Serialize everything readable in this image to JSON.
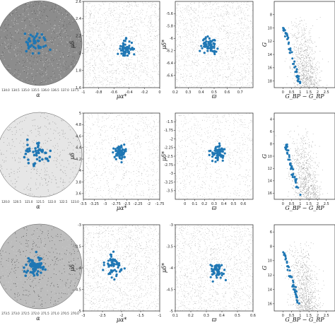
{
  "chart_data": {
    "type": "scatter",
    "layout": "3 rows x 4 columns grid",
    "colors": {
      "members": "#1f77b4",
      "field": "#8a8a8a",
      "sky_dark": "#6f6f6f"
    },
    "rows": [
      {
        "sky": {
          "xlabel": "α",
          "xticks": [
            "134.0",
            "134.5",
            "135.0",
            "135.5",
            "136.0",
            "136.5",
            "137.0",
            "137.5"
          ]
        },
        "pm": {
          "xlabel": "μα*",
          "ylabel": "μδ",
          "xlim": [
            -1.0,
            0.0
          ],
          "ylim": [
            1.6,
            2.6
          ],
          "xticks": [
            -1.0,
            -0.8,
            -0.6,
            -0.4,
            -0.2,
            0.0
          ],
          "yticks": [
            1.6,
            1.8,
            2.0,
            2.2,
            2.4,
            2.6
          ],
          "center": [
            -0.45,
            2.05
          ],
          "spread": [
            0.05,
            0.05
          ]
        },
        "plx": {
          "xlabel": "ϖ",
          "ylabel": "μδ*",
          "xlim": [
            0.2,
            0.8
          ],
          "ylim": [
            -6.8,
            -5.4
          ],
          "xticks": [
            0.2,
            0.3,
            0.4,
            0.5,
            0.6,
            0.7
          ],
          "yticks": [
            -5.6,
            -5.8,
            -6.0,
            -6.2,
            -6.4,
            -6.6
          ],
          "center": [
            0.47,
            -6.1
          ],
          "spread": [
            0.03,
            0.06
          ]
        },
        "cmd": {
          "xlabel": "G_BP − G_RP",
          "ylabel": "G",
          "xlim": [
            -0.5,
            3.0
          ],
          "ylim": [
            19,
            6
          ],
          "xticks": [
            0.0,
            0.5,
            1.0,
            1.5,
            2.0,
            2.5
          ],
          "yticks": [
            8,
            10,
            12,
            14,
            16,
            18
          ]
        }
      },
      {
        "sky": {
          "xlabel": "α",
          "xticks": [
            "120.0",
            "120.5",
            "121.0",
            "121.5",
            "122.0",
            "122.5",
            "123.0"
          ]
        },
        "pm": {
          "xlabel": "μα*",
          "ylabel": "μδ",
          "xlim": [
            -3.5,
            -1.75
          ],
          "ylim": [
            3.5,
            5.0
          ],
          "xticks": [
            -3.5,
            -3.25,
            -3.0,
            -2.75,
            -2.5,
            -2.25,
            -2.0,
            -1.75
          ],
          "yticks": [
            3.6,
            3.8,
            4.0,
            4.2,
            4.4,
            4.6,
            4.8,
            5.0
          ],
          "center": [
            -2.65,
            4.32
          ],
          "spread": [
            0.07,
            0.06
          ]
        },
        "plx": {
          "xlabel": "ϖ",
          "ylabel": "μδ*",
          "xlim": [
            -0.1,
            0.7
          ],
          "ylim": [
            -3.75,
            -1.25
          ],
          "xticks": [
            0.0,
            0.1,
            0.2,
            0.3,
            0.4,
            0.5,
            0.6
          ],
          "yticks": [
            -1.5,
            -1.75,
            -2.0,
            -2.25,
            -2.5,
            -2.75,
            -3.0,
            -3.25,
            -3.5
          ],
          "center": [
            0.33,
            -2.4
          ],
          "spread": [
            0.04,
            0.12
          ]
        },
        "cmd": {
          "xlabel": "G_BP − G_RP",
          "ylabel": "G",
          "xlim": [
            -0.5,
            3.0
          ],
          "ylim": [
            17,
            3
          ],
          "xticks": [
            0.0,
            0.5,
            1.0,
            1.5,
            2.0,
            2.5
          ],
          "yticks": [
            4,
            6,
            8,
            10,
            12,
            14,
            16
          ]
        }
      },
      {
        "sky": {
          "xlabel": "α",
          "xticks": [
            "273.5",
            "273.0",
            "272.5",
            "272.0",
            "271.5",
            "271.0",
            "270.5",
            "270.0"
          ]
        },
        "pm": {
          "xlabel": "μα*",
          "ylabel": "μδ",
          "xlim": [
            -3.0,
            -1.0
          ],
          "ylim": [
            -5.0,
            -3.0
          ],
          "xticks": [
            -3.0,
            -2.5,
            -2.0,
            -1.5,
            -1.0
          ],
          "yticks": [
            -3.0,
            -3.5,
            -4.0,
            -4.5,
            -5.0
          ],
          "center": [
            -2.2,
            -3.95
          ],
          "spread": [
            0.1,
            0.12
          ]
        },
        "plx": {
          "xlabel": "ϖ",
          "ylabel": "μδ*",
          "xlim": [
            0.1,
            0.6
          ],
          "ylim": [
            -5.0,
            -3.0
          ],
          "xticks": [
            0.1,
            0.2,
            0.3,
            0.4,
            0.5,
            0.6
          ],
          "yticks": [
            -3.0,
            -3.5,
            -4.0,
            -4.5,
            -5.0
          ],
          "center": [
            0.37,
            -4.05
          ],
          "spread": [
            0.02,
            0.1
          ]
        },
        "cmd": {
          "xlabel": "G_BP − G_RP",
          "ylabel": "G",
          "xlim": [
            -0.5,
            3.0
          ],
          "ylim": [
            17,
            5
          ],
          "xticks": [
            0.0,
            0.5,
            1.0,
            1.5,
            2.0,
            2.5
          ],
          "yticks": [
            6,
            8,
            10,
            12,
            14,
            16
          ]
        }
      }
    ]
  }
}
